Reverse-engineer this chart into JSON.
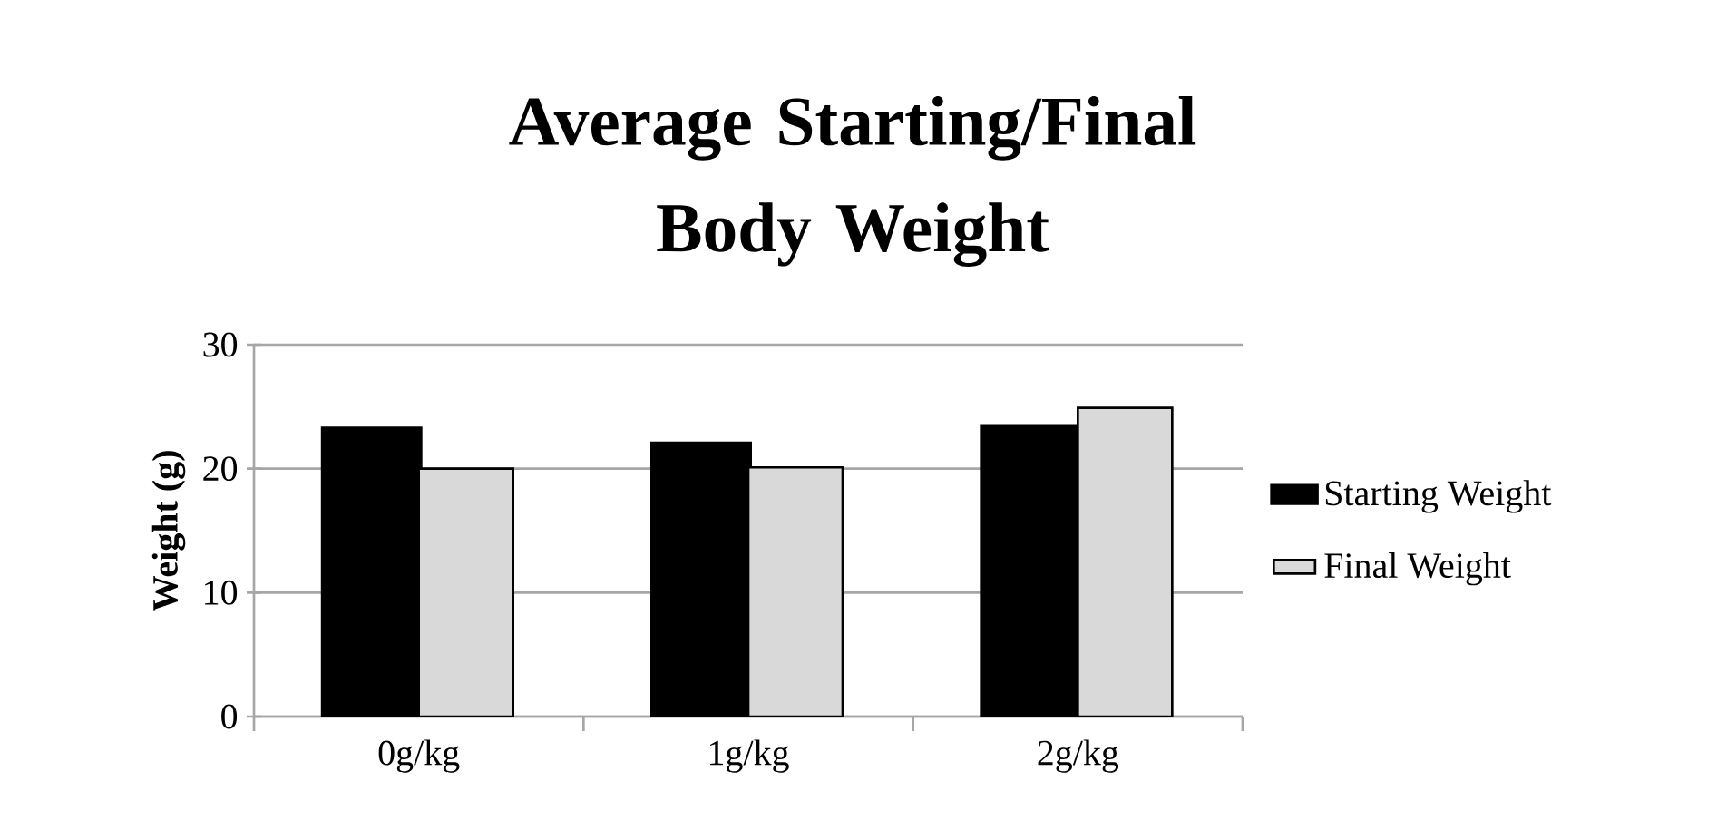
{
  "chart_data": {
    "type": "bar",
    "title": "Average Starting/Final Body Weight",
    "ylabel": "Weight (g)",
    "categories": [
      "0g/kg",
      "1g/kg",
      "2g/kg"
    ],
    "series": [
      {
        "name": "Starting Weight",
        "color": "#000000",
        "values": [
          23.1,
          21.9,
          23.3
        ]
      },
      {
        "name": "Final Weight",
        "color": "#d9d9d9",
        "values": [
          20.0,
          20.1,
          24.9
        ]
      }
    ],
    "ylim": [
      0,
      30
    ],
    "yticks": [
      0,
      10,
      20,
      30
    ],
    "grid": "y",
    "legend": "right"
  }
}
